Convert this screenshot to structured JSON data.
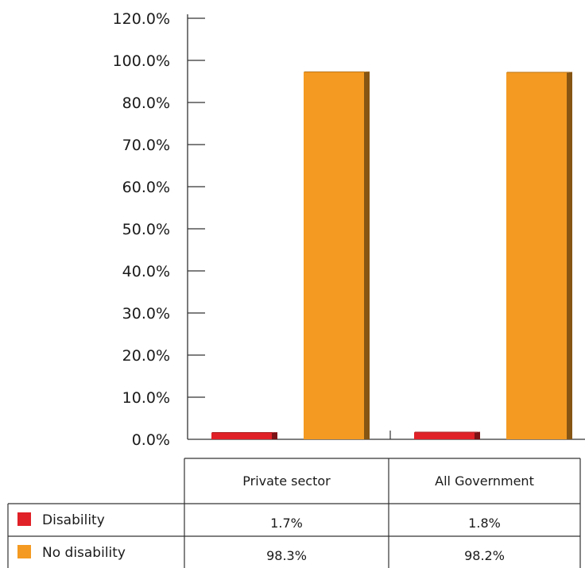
{
  "chart_data": {
    "type": "bar",
    "categories": [
      "Private sector",
      "All Government"
    ],
    "series": [
      {
        "name": "Disability",
        "values": [
          1.7,
          1.8
        ],
        "labels": [
          "1.7%",
          "1.8%"
        ],
        "color": "#e02127"
      },
      {
        "name": "No disability",
        "values": [
          98.3,
          98.2
        ],
        "labels": [
          "98.3%",
          "98.2%"
        ],
        "color": "#f49a22"
      }
    ],
    "y_ticks": [
      "0.0%",
      "10.0%",
      "20.0%",
      "30.0%",
      "40.0%",
      "50.0%",
      "60.0%",
      "70.0%",
      "80.0%",
      "100.0%",
      "120.0%"
    ],
    "grid": false,
    "legend": "data-table"
  }
}
